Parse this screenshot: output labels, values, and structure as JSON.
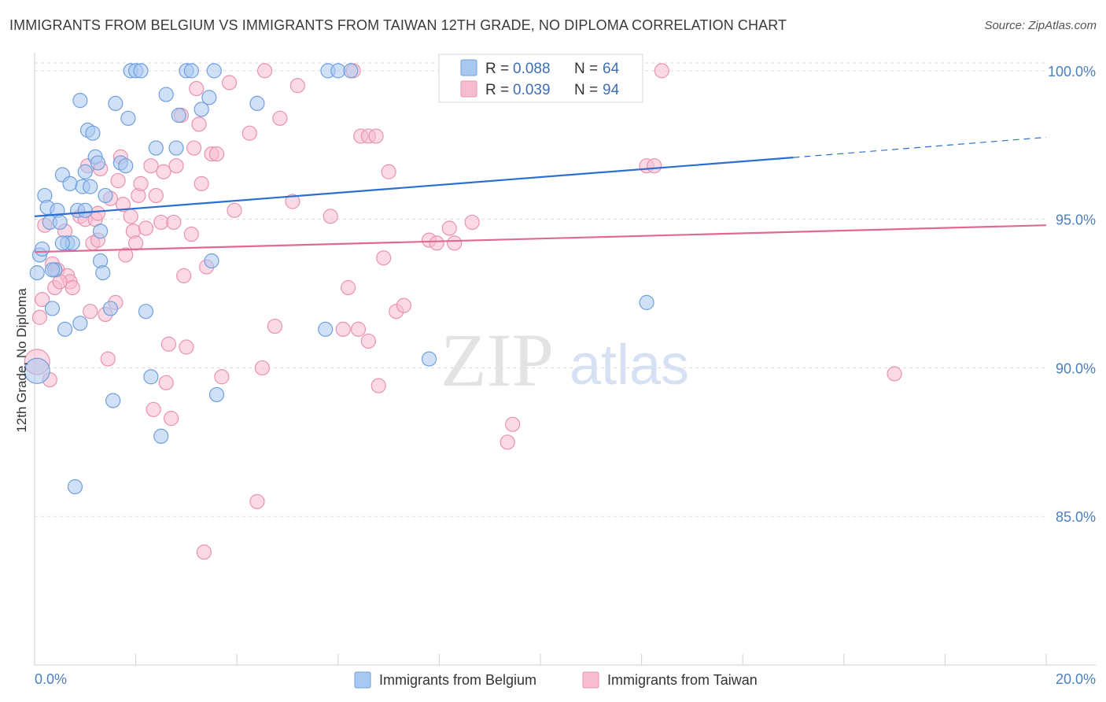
{
  "title": "IMMIGRANTS FROM BELGIUM VS IMMIGRANTS FROM TAIWAN 12TH GRADE, NO DIPLOMA CORRELATION CHART",
  "source": "Source: ZipAtlas.com",
  "watermark": {
    "zip": "ZIP",
    "atlas": "atlas"
  },
  "colors": {
    "belgium_fill": "#a9c8f0",
    "belgium_stroke": "#6f9fdc",
    "belgium_line": "#2c6fd1",
    "taiwan_fill": "#f8bcd0",
    "taiwan_stroke": "#e892b0",
    "taiwan_line": "#e06a96",
    "grid": "#dcdcdc",
    "tick_label": "#4a7fc0"
  },
  "legend": {
    "r_label": "R =",
    "n_label": "N =",
    "belgium": {
      "r": "0.088",
      "n": "64"
    },
    "taiwan": {
      "r": "0.039",
      "n": "94"
    }
  },
  "chart_data": {
    "type": "scatter",
    "title": "IMMIGRANTS FROM BELGIUM VS IMMIGRANTS FROM TAIWAN 12TH GRADE, NO DIPLOMA CORRELATION CHART",
    "xlabel": "",
    "ylabel": "12th Grade, No Diploma",
    "xlim": [
      0,
      20
    ],
    "ylim": [
      80,
      100.5
    ],
    "x_tick_labels": [
      "0.0%",
      "20.0%"
    ],
    "y_ticks": [
      85,
      90,
      95,
      100
    ],
    "y_tick_labels": [
      "85.0%",
      "90.0%",
      "95.0%",
      "100.0%"
    ],
    "grid": true,
    "series": [
      {
        "name": "Immigrants from Belgium",
        "r": 0.088,
        "n": 64,
        "trend": {
          "x0": 0,
          "y0": 95.1,
          "x1": 15,
          "y1": 97.08,
          "dashed_to_x": 20,
          "dashed_to_y": 97.76
        },
        "points": [
          [
            0.05,
            93.2
          ],
          [
            0.1,
            93.8
          ],
          [
            0.15,
            94.0
          ],
          [
            0.2,
            95.8
          ],
          [
            0.25,
            95.4
          ],
          [
            0.3,
            94.9
          ],
          [
            0.35,
            92.0
          ],
          [
            0.4,
            93.3
          ],
          [
            0.45,
            95.3
          ],
          [
            0.5,
            94.9
          ],
          [
            0.55,
            96.5
          ],
          [
            0.6,
            91.3
          ],
          [
            0.65,
            94.2
          ],
          [
            0.7,
            96.2
          ],
          [
            0.75,
            94.2
          ],
          [
            0.8,
            86.0
          ],
          [
            0.85,
            95.3
          ],
          [
            0.9,
            91.5
          ],
          [
            0.95,
            96.1
          ],
          [
            0.9,
            99.0
          ],
          [
            1.0,
            96.6
          ],
          [
            1.05,
            98.0
          ],
          [
            1.1,
            96.1
          ],
          [
            1.15,
            97.9
          ],
          [
            1.2,
            97.1
          ],
          [
            1.25,
            96.9
          ],
          [
            1.3,
            94.6
          ],
          [
            1.3,
            93.6
          ],
          [
            1.35,
            93.2
          ],
          [
            1.4,
            95.8
          ],
          [
            1.5,
            92.0
          ],
          [
            1.55,
            88.9
          ],
          [
            1.6,
            98.9
          ],
          [
            1.7,
            96.9
          ],
          [
            1.8,
            96.8
          ],
          [
            1.85,
            98.4
          ],
          [
            1.9,
            100.0
          ],
          [
            2.0,
            100.0
          ],
          [
            2.1,
            100.0
          ],
          [
            2.2,
            91.9
          ],
          [
            2.3,
            89.7
          ],
          [
            2.4,
            97.4
          ],
          [
            2.5,
            87.7
          ],
          [
            2.6,
            99.2
          ],
          [
            2.8,
            97.4
          ],
          [
            2.85,
            98.5
          ],
          [
            3.0,
            100.0
          ],
          [
            3.1,
            100.0
          ],
          [
            3.3,
            98.7
          ],
          [
            3.45,
            99.1
          ],
          [
            3.5,
            93.6
          ],
          [
            3.55,
            100.0
          ],
          [
            3.6,
            89.1
          ],
          [
            4.4,
            98.9
          ],
          [
            5.75,
            91.3
          ],
          [
            5.8,
            100.0
          ],
          [
            6.0,
            100.0
          ],
          [
            6.25,
            100.0
          ],
          [
            7.8,
            90.3
          ],
          [
            12.1,
            92.2
          ],
          [
            0.05,
            89.9
          ],
          [
            0.35,
            93.3
          ],
          [
            1.0,
            95.3
          ],
          [
            0.55,
            94.2
          ]
        ]
      },
      {
        "name": "Immigrants from Taiwan",
        "r": 0.039,
        "n": 94,
        "trend": {
          "x0": 0,
          "y0": 93.9,
          "x1": 20,
          "y1": 94.8
        },
        "points": [
          [
            0.05,
            90.2
          ],
          [
            0.1,
            91.7
          ],
          [
            0.15,
            92.3
          ],
          [
            0.3,
            89.6
          ],
          [
            0.35,
            93.5
          ],
          [
            0.4,
            92.7
          ],
          [
            0.45,
            93.3
          ],
          [
            0.6,
            94.6
          ],
          [
            0.65,
            93.1
          ],
          [
            0.7,
            92.9
          ],
          [
            0.75,
            92.7
          ],
          [
            0.9,
            95.1
          ],
          [
            1.0,
            95.0
          ],
          [
            1.05,
            96.8
          ],
          [
            1.1,
            91.9
          ],
          [
            1.15,
            94.2
          ],
          [
            1.2,
            95.0
          ],
          [
            1.25,
            94.3
          ],
          [
            1.3,
            96.7
          ],
          [
            1.4,
            91.8
          ],
          [
            1.45,
            90.3
          ],
          [
            1.5,
            95.7
          ],
          [
            1.6,
            92.2
          ],
          [
            1.65,
            96.3
          ],
          [
            1.7,
            97.1
          ],
          [
            1.75,
            95.5
          ],
          [
            1.8,
            93.8
          ],
          [
            1.9,
            95.1
          ],
          [
            1.95,
            94.6
          ],
          [
            2.0,
            94.2
          ],
          [
            2.05,
            95.8
          ],
          [
            2.1,
            96.2
          ],
          [
            2.2,
            94.7
          ],
          [
            2.3,
            96.8
          ],
          [
            2.35,
            88.6
          ],
          [
            2.4,
            95.8
          ],
          [
            2.5,
            94.9
          ],
          [
            2.55,
            96.6
          ],
          [
            2.6,
            89.5
          ],
          [
            2.65,
            90.8
          ],
          [
            2.7,
            88.3
          ],
          [
            2.75,
            94.9
          ],
          [
            2.8,
            96.8
          ],
          [
            2.9,
            98.5
          ],
          [
            2.95,
            93.1
          ],
          [
            3.0,
            90.7
          ],
          [
            3.1,
            94.5
          ],
          [
            3.15,
            97.4
          ],
          [
            3.2,
            99.4
          ],
          [
            3.25,
            98.2
          ],
          [
            3.3,
            96.2
          ],
          [
            3.35,
            83.8
          ],
          [
            3.4,
            93.4
          ],
          [
            3.5,
            97.2
          ],
          [
            3.6,
            97.2
          ],
          [
            3.7,
            89.7
          ],
          [
            3.85,
            99.6
          ],
          [
            3.95,
            95.3
          ],
          [
            4.25,
            97.9
          ],
          [
            4.4,
            85.5
          ],
          [
            4.5,
            90.0
          ],
          [
            4.55,
            100.0
          ],
          [
            4.75,
            91.4
          ],
          [
            4.85,
            98.4
          ],
          [
            5.1,
            95.6
          ],
          [
            5.2,
            99.5
          ],
          [
            5.85,
            95.1
          ],
          [
            6.1,
            91.3
          ],
          [
            6.2,
            92.7
          ],
          [
            6.4,
            91.3
          ],
          [
            6.45,
            97.8
          ],
          [
            6.6,
            97.8
          ],
          [
            6.6,
            90.9
          ],
          [
            6.75,
            97.8
          ],
          [
            6.8,
            89.4
          ],
          [
            6.9,
            93.7
          ],
          [
            7.0,
            96.6
          ],
          [
            7.15,
            91.9
          ],
          [
            7.3,
            92.1
          ],
          [
            7.8,
            94.3
          ],
          [
            7.95,
            94.2
          ],
          [
            8.2,
            94.7
          ],
          [
            8.3,
            94.2
          ],
          [
            8.65,
            94.9
          ],
          [
            9.35,
            87.5
          ],
          [
            9.45,
            88.1
          ],
          [
            12.1,
            96.8
          ],
          [
            12.25,
            96.8
          ],
          [
            12.4,
            100.0
          ],
          [
            17.0,
            89.8
          ],
          [
            6.3,
            100.0
          ],
          [
            1.25,
            95.2
          ],
          [
            0.5,
            92.9
          ],
          [
            0.2,
            94.8
          ]
        ]
      }
    ],
    "legend_position": "top-center"
  }
}
